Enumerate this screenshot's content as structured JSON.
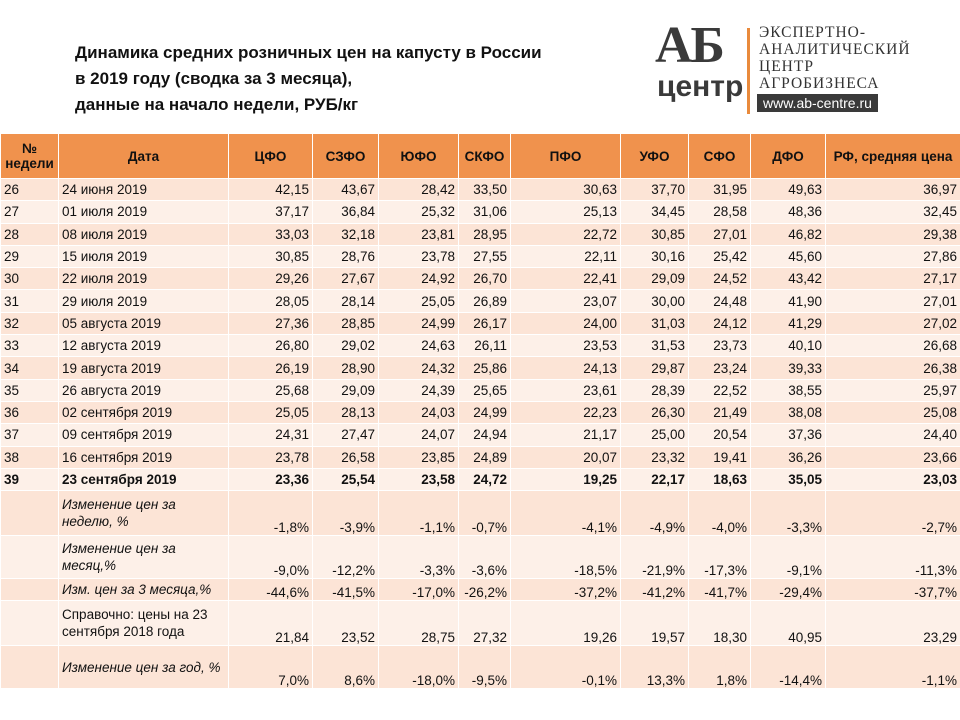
{
  "header": {
    "title": [
      "Динамика средних розничных цен на капусту в России",
      "в 2019 году  (сводка за 3 месяца),",
      "данные  на начало недели, РУБ/кг"
    ],
    "logo": {
      "mark": "АБ",
      "word": "центр",
      "lines": [
        "ЭКСПЕРТНО-",
        "АНАЛИТИЧЕСКИЙ",
        "ЦЕНТР",
        "АГРОБИЗНЕСА"
      ],
      "url": "www.ab-centre.ru"
    }
  },
  "table": {
    "columns": [
      "№ недели",
      "Дата",
      "ЦФО",
      "СЗФО",
      "ЮФО",
      "СКФО",
      "ПФО",
      "УФО",
      "СФО",
      "ДФО",
      "РФ, средняя цена"
    ],
    "rows": [
      [
        "26",
        "24 июня 2019",
        "42,15",
        "43,67",
        "28,42",
        "33,50",
        "30,63",
        "37,70",
        "31,95",
        "49,63",
        "36,97"
      ],
      [
        "27",
        "01 июля 2019",
        "37,17",
        "36,84",
        "25,32",
        "31,06",
        "25,13",
        "34,45",
        "28,58",
        "48,36",
        "32,45"
      ],
      [
        "28",
        "08 июля 2019",
        "33,03",
        "32,18",
        "23,81",
        "28,95",
        "22,72",
        "30,85",
        "27,01",
        "46,82",
        "29,38"
      ],
      [
        "29",
        "15 июля 2019",
        "30,85",
        "28,76",
        "23,78",
        "27,55",
        "22,11",
        "30,16",
        "25,42",
        "45,60",
        "27,86"
      ],
      [
        "30",
        "22 июля 2019",
        "29,26",
        "27,67",
        "24,92",
        "26,70",
        "22,41",
        "29,09",
        "24,52",
        "43,42",
        "27,17"
      ],
      [
        "31",
        "29 июля 2019",
        "28,05",
        "28,14",
        "25,05",
        "26,89",
        "23,07",
        "30,00",
        "24,48",
        "41,90",
        "27,01"
      ],
      [
        "32",
        "05 августа 2019",
        "27,36",
        "28,85",
        "24,99",
        "26,17",
        "24,00",
        "31,03",
        "24,12",
        "41,29",
        "27,02"
      ],
      [
        "33",
        "12 августа 2019",
        "26,80",
        "29,02",
        "24,63",
        "26,11",
        "23,53",
        "31,53",
        "23,73",
        "40,10",
        "26,68"
      ],
      [
        "34",
        "19 августа 2019",
        "26,19",
        "28,90",
        "24,32",
        "25,86",
        "24,13",
        "29,87",
        "23,24",
        "39,33",
        "26,38"
      ],
      [
        "35",
        "26 августа 2019",
        "25,68",
        "29,09",
        "24,39",
        "25,65",
        "23,61",
        "28,39",
        "22,52",
        "38,55",
        "25,97"
      ],
      [
        "36",
        "02 сентября 2019",
        "25,05",
        "28,13",
        "24,03",
        "24,99",
        "22,23",
        "26,30",
        "21,49",
        "38,08",
        "25,08"
      ],
      [
        "37",
        "09 сентября 2019",
        "24,31",
        "27,47",
        "24,07",
        "24,94",
        "21,17",
        "25,00",
        "20,54",
        "37,36",
        "24,40"
      ],
      [
        "38",
        "16 сентября 2019",
        "23,78",
        "26,58",
        "23,85",
        "24,89",
        "20,07",
        "23,32",
        "19,41",
        "36,26",
        "23,66"
      ],
      [
        "39",
        "23 сентября 2019",
        "23,36",
        "25,54",
        "23,58",
        "24,72",
        "19,25",
        "22,17",
        "18,63",
        "35,05",
        "23,03"
      ]
    ],
    "summary_rows": [
      [
        "Изменение цен за неделю, %",
        "-1,8%",
        "-3,9%",
        "-1,1%",
        "-0,7%",
        "-4,1%",
        "-4,9%",
        "-4,0%",
        "-3,3%",
        "-2,7%"
      ],
      [
        "Изменение цен за месяц,%",
        "-9,0%",
        "-12,2%",
        "-3,3%",
        "-3,6%",
        "-18,5%",
        "-21,9%",
        "-17,3%",
        "-9,1%",
        "-11,3%"
      ],
      [
        "Изм. цен за 3 месяца,%",
        "-44,6%",
        "-41,5%",
        "-17,0%",
        "-26,2%",
        "-37,2%",
        "-41,2%",
        "-41,7%",
        "-29,4%",
        "-37,7%"
      ],
      [
        "Справочно: цены на 23 сентября 2018 года",
        "21,84",
        "23,52",
        "28,75",
        "27,32",
        "19,26",
        "19,57",
        "18,30",
        "40,95",
        "23,29"
      ],
      [
        "Изменение цен за год, %",
        "7,0%",
        "8,6%",
        "-18,0%",
        "-9,5%",
        "-0,1%",
        "13,3%",
        "1,8%",
        "-14,4%",
        "-1,1%"
      ]
    ]
  }
}
